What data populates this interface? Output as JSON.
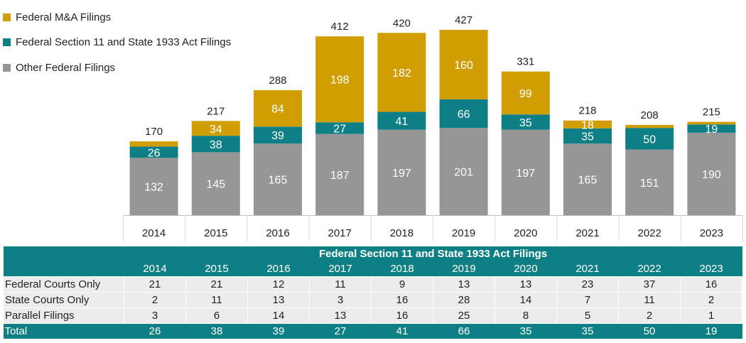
{
  "colors": {
    "ma": "#d09e00",
    "sec11": "#0f7f86",
    "other": "#969696",
    "table_header": "#0f7f86"
  },
  "legend": [
    {
      "label": "Federal M&A Filings",
      "color": "#d09e00"
    },
    {
      "label": "Federal Section 11 and State 1933 Act Filings",
      "color": "#0f7f86"
    },
    {
      "label": "Other Federal Filings",
      "color": "#969696"
    }
  ],
  "chart_data": {
    "type": "bar",
    "stacked": true,
    "categories": [
      "2014",
      "2015",
      "2016",
      "2017",
      "2018",
      "2019",
      "2020",
      "2021",
      "2022",
      "2023"
    ],
    "series": [
      {
        "name": "Other Federal Filings",
        "values": [
          132,
          145,
          165,
          187,
          197,
          201,
          197,
          165,
          151,
          190
        ],
        "labels": [
          "132",
          "145",
          "165",
          "187",
          "197",
          "201",
          "197",
          "165",
          "151",
          "190"
        ]
      },
      {
        "name": "Federal Section 11 and State 1933 Act Filings",
        "values": [
          26,
          38,
          39,
          27,
          41,
          66,
          35,
          35,
          50,
          19
        ],
        "labels": [
          "26",
          "38",
          "39",
          "27",
          "41",
          "66",
          "35",
          "35",
          "50",
          "19"
        ]
      },
      {
        "name": "Federal M&A Filings",
        "values": [
          12,
          34,
          84,
          198,
          182,
          160,
          99,
          18,
          7,
          6
        ],
        "labels": [
          "",
          "34",
          "84",
          "198",
          "182",
          "160",
          "99",
          "18",
          "",
          ""
        ]
      }
    ],
    "totals": [
      170,
      217,
      288,
      412,
      420,
      427,
      331,
      218,
      208,
      215
    ],
    "ylim": [
      0,
      450
    ],
    "legend_position": "top-left",
    "grid": false
  },
  "table": {
    "title": "Federal Section 11 and State 1933 Act Filings",
    "years": [
      "2014",
      "2015",
      "2016",
      "2017",
      "2018",
      "2019",
      "2020",
      "2021",
      "2022",
      "2023"
    ],
    "rows": [
      {
        "label": "Federal Courts Only",
        "values": [
          "21",
          "21",
          "12",
          "11",
          "9",
          "13",
          "13",
          "23",
          "37",
          "16"
        ]
      },
      {
        "label": "State Courts Only",
        "values": [
          "2",
          "11",
          "13",
          "3",
          "16",
          "28",
          "14",
          "7",
          "11",
          "2"
        ]
      },
      {
        "label": "Parallel Filings",
        "values": [
          "3",
          "6",
          "14",
          "13",
          "16",
          "25",
          "8",
          "5",
          "2",
          "1"
        ]
      }
    ],
    "total": {
      "label": "Total",
      "values": [
        "26",
        "38",
        "39",
        "27",
        "41",
        "66",
        "35",
        "35",
        "50",
        "19"
      ]
    }
  }
}
